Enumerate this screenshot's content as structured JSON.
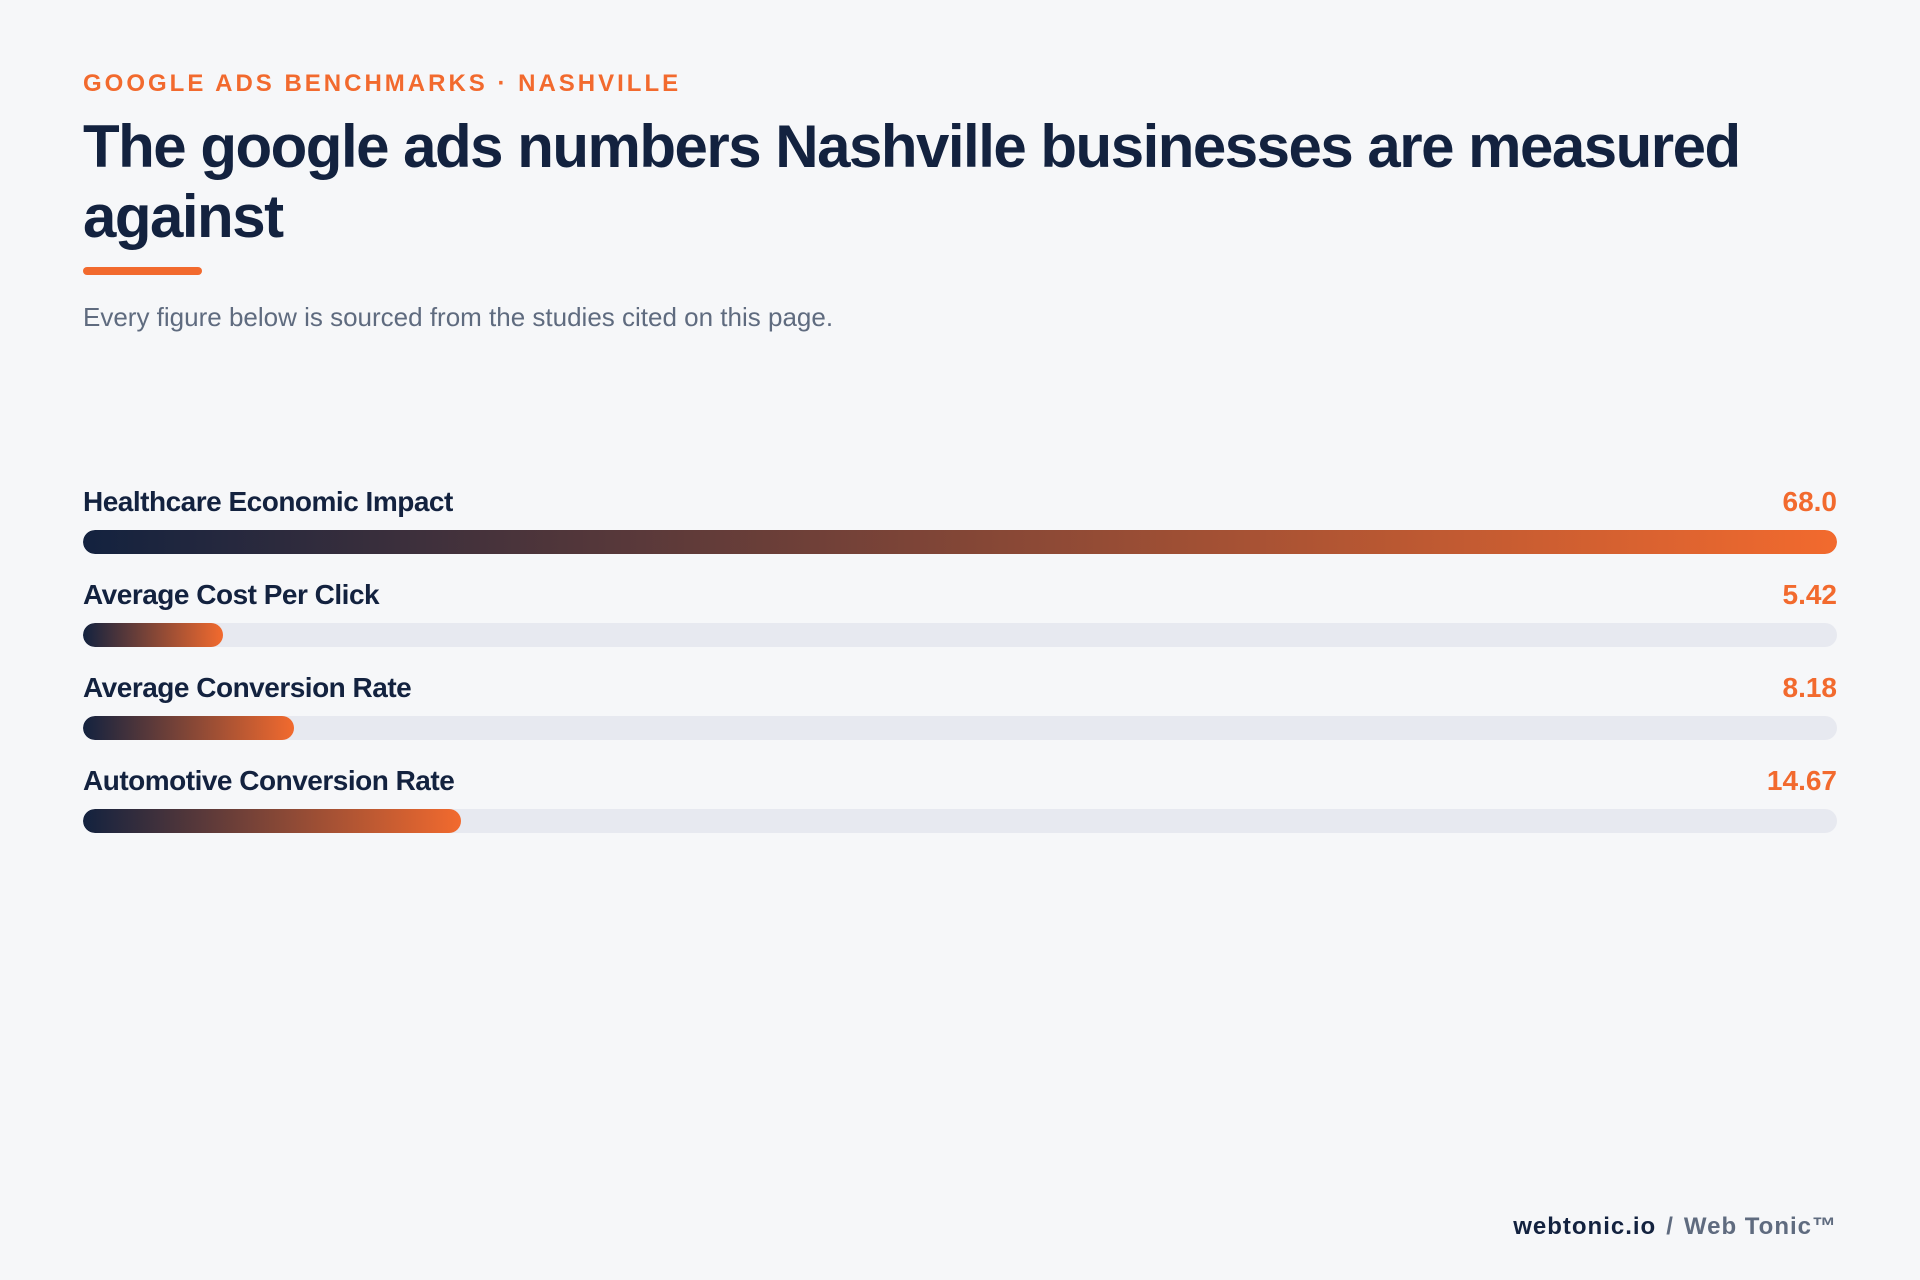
{
  "header": {
    "eyebrow": "GOOGLE ADS BENCHMARKS · NASHVILLE",
    "title": "The google ads numbers Nashville businesses are measured against",
    "subtitle": "Every figure below is sourced from the studies cited on this page."
  },
  "colors": {
    "accent": "#f26a2e",
    "navy": "#13223f",
    "track": "#e7e9f0",
    "background": "#f6f7f9"
  },
  "chart_data": {
    "type": "bar",
    "orientation": "horizontal",
    "title": "The google ads numbers Nashville businesses are measured against",
    "categories": [
      "Healthcare Economic Impact",
      "Average Cost Per Click",
      "Average Conversion Rate",
      "Automotive Conversion Rate"
    ],
    "values": [
      68.0,
      5.42,
      8.18,
      14.67
    ],
    "value_labels": [
      "68.0",
      "5.42",
      "8.18",
      "14.67"
    ],
    "xlim": [
      0,
      68.0
    ],
    "grid": false,
    "legend": "none"
  },
  "footer": {
    "site": "webtonic.io",
    "separator": "/",
    "brand": "Web Tonic™"
  }
}
